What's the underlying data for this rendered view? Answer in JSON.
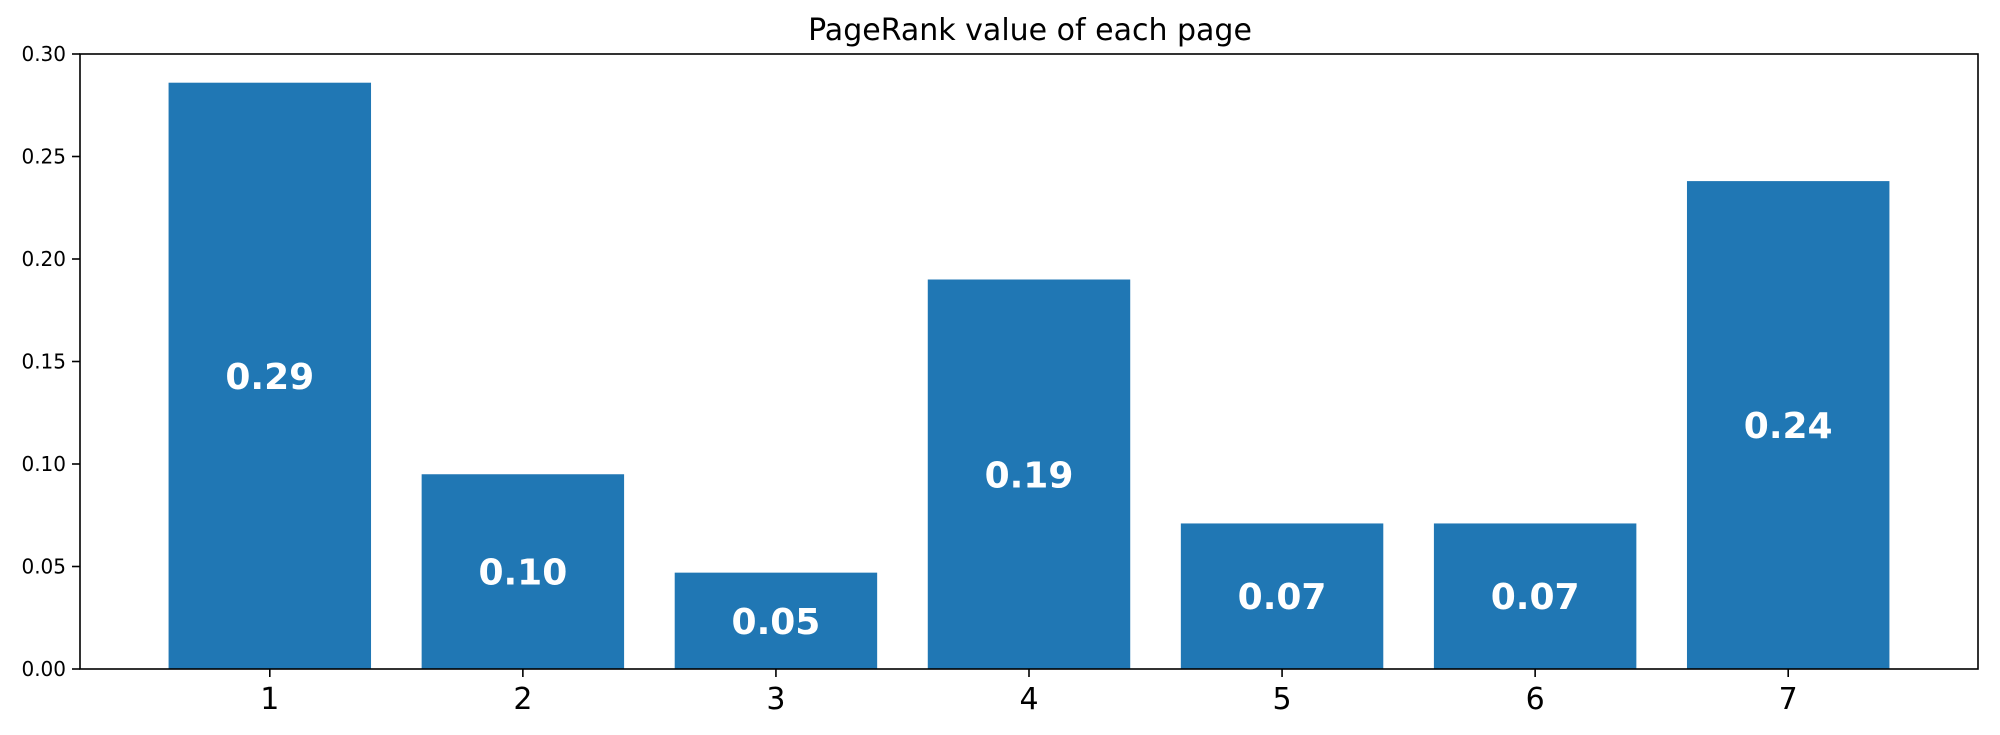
{
  "chart_data": {
    "type": "bar",
    "title": "PageRank value of each page",
    "xlabel": "",
    "ylabel": "",
    "categories": [
      "1",
      "2",
      "3",
      "4",
      "5",
      "6",
      "7"
    ],
    "values": [
      0.286,
      0.095,
      0.047,
      0.19,
      0.071,
      0.071,
      0.238
    ],
    "data_labels": [
      "0.29",
      "0.10",
      "0.05",
      "0.19",
      "0.07",
      "0.07",
      "0.24"
    ],
    "ylim": [
      0,
      0.3
    ],
    "yticks": [
      0.0,
      0.05,
      0.1,
      0.15,
      0.2,
      0.25,
      0.3
    ],
    "ytick_labels": [
      "0.00",
      "0.05",
      "0.10",
      "0.15",
      "0.20",
      "0.25",
      "0.30"
    ],
    "grid": false,
    "legend": "none",
    "bar_color": "#2077b4",
    "label_color": "#ffffff"
  }
}
